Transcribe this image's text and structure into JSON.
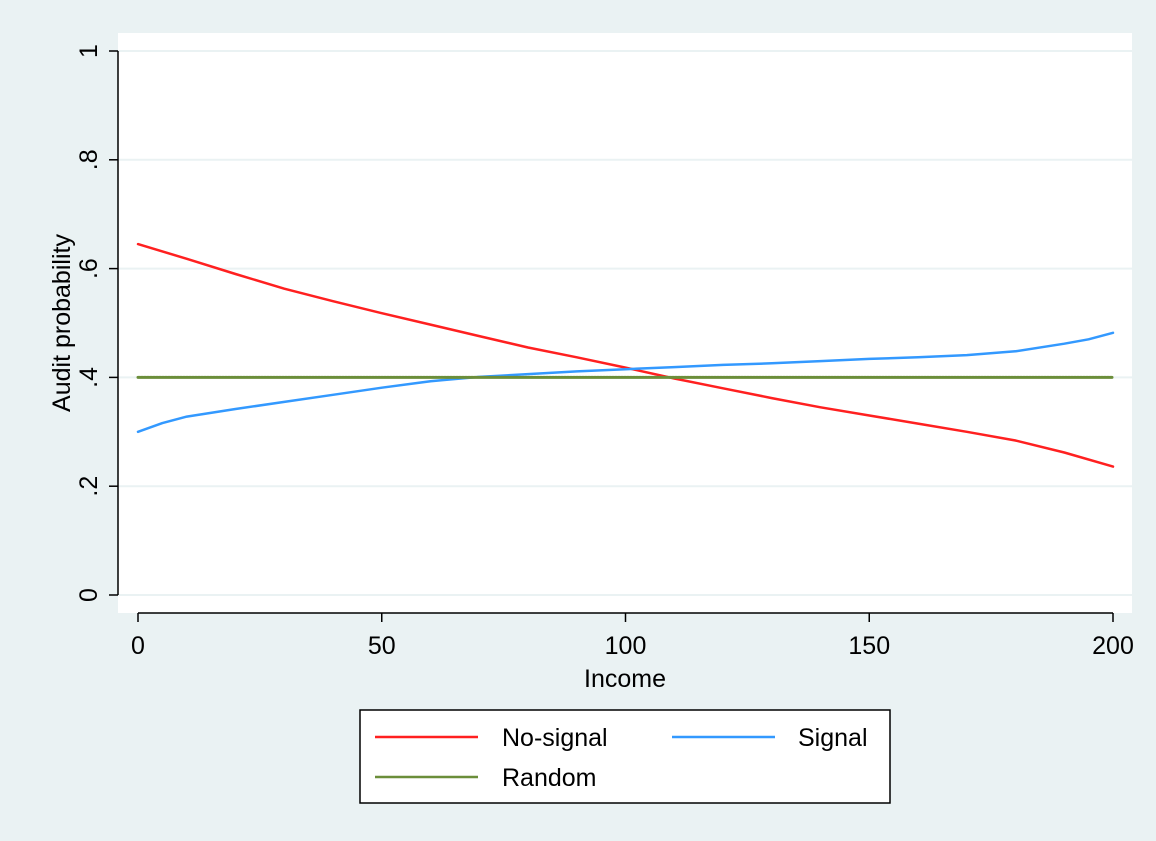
{
  "chart_data": {
    "type": "line",
    "title": "",
    "xlabel": "Income",
    "ylabel": "Audit probability",
    "xlim": [
      0,
      200
    ],
    "ylim": [
      0,
      1
    ],
    "x_ticks": [
      0,
      50,
      100,
      150,
      200
    ],
    "x_tick_labels": [
      "0",
      "50",
      "100",
      "150",
      "200"
    ],
    "y_ticks": [
      0,
      0.2,
      0.4,
      0.6,
      0.8,
      1
    ],
    "y_tick_labels": [
      "0",
      ".2",
      ".4",
      ".6",
      ".8",
      "1"
    ],
    "grid": true,
    "legend_position": "bottom",
    "series": [
      {
        "name": "No-signal",
        "color": "#ff2020",
        "x": [
          0,
          10,
          20,
          30,
          40,
          50,
          60,
          70,
          80,
          90,
          100,
          110,
          120,
          130,
          140,
          150,
          160,
          170,
          180,
          190,
          200
        ],
        "values": [
          0.645,
          0.618,
          0.59,
          0.563,
          0.54,
          0.518,
          0.497,
          0.476,
          0.455,
          0.437,
          0.418,
          0.398,
          0.38,
          0.362,
          0.345,
          0.33,
          0.315,
          0.3,
          0.284,
          0.262,
          0.236
        ]
      },
      {
        "name": "Signal",
        "color": "#3399ff",
        "x": [
          0,
          5,
          10,
          20,
          30,
          40,
          50,
          60,
          70,
          80,
          90,
          100,
          110,
          120,
          130,
          140,
          150,
          160,
          170,
          180,
          190,
          195,
          200
        ],
        "values": [
          0.3,
          0.316,
          0.328,
          0.342,
          0.355,
          0.368,
          0.381,
          0.393,
          0.401,
          0.406,
          0.411,
          0.415,
          0.419,
          0.423,
          0.426,
          0.43,
          0.434,
          0.437,
          0.441,
          0.448,
          0.462,
          0.47,
          0.482
        ]
      },
      {
        "name": "Random",
        "color": "#6b8e3a",
        "x": [
          0,
          200
        ],
        "values": [
          0.4,
          0.4
        ]
      }
    ]
  },
  "colors": {
    "background": "#eaf2f3",
    "plot_area": "#ffffff",
    "grid": "#eaf2f3"
  }
}
